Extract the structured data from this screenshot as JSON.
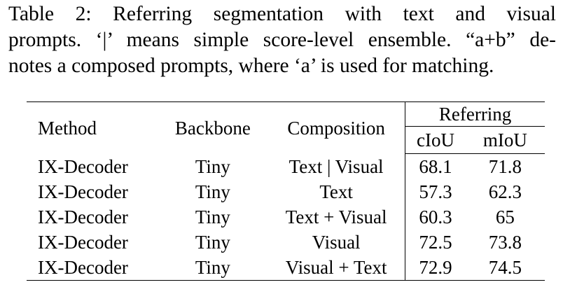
{
  "caption": {
    "lines": [
      "Table 2:  Referring segmentation with text and visual",
      "prompts. ‘|’ means simple score-level ensemble. “a+b” de-",
      "notes a composed prompts, where ‘a’ is used for matching."
    ]
  },
  "table": {
    "headers": {
      "method": "Method",
      "backbone": "Backbone",
      "composition": "Composition",
      "group": "Referring",
      "ciou": "cIoU",
      "miou": "mIoU"
    },
    "rows": [
      {
        "method": "IX-Decoder",
        "backbone": "Tiny",
        "composition": "Text | Visual",
        "ciou": "68.1",
        "miou": "71.8"
      },
      {
        "method": "IX-Decoder",
        "backbone": "Tiny",
        "composition": "Text",
        "ciou": "57.3",
        "miou": "62.3"
      },
      {
        "method": "IX-Decoder",
        "backbone": "Tiny",
        "composition": "Text + Visual",
        "ciou": "60.3",
        "miou": "65"
      },
      {
        "method": "IX-Decoder",
        "backbone": "Tiny",
        "composition": "Visual",
        "ciou": "72.5",
        "miou": "73.8"
      },
      {
        "method": "IX-Decoder",
        "backbone": "Tiny",
        "composition": "Visual + Text",
        "ciou": "72.9",
        "miou": "74.5"
      }
    ]
  }
}
